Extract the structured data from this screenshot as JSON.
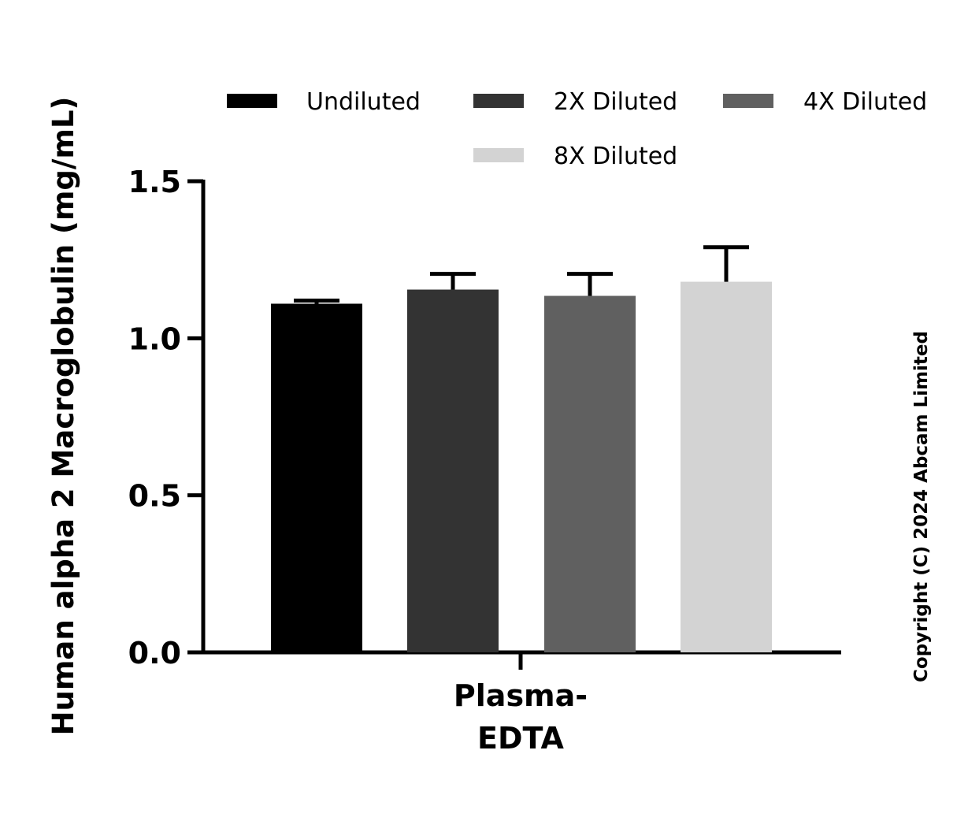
{
  "chart_data": {
    "type": "bar",
    "title": "",
    "ylabel": "Human alpha 2 Macroglobulin (mg/mL)",
    "xlabel": "",
    "categories": [
      "Plasma-\nEDTA"
    ],
    "category_lines": [
      "Plasma-",
      "EDTA"
    ],
    "ylim": [
      0,
      1.5
    ],
    "yticks": [
      "0.0",
      "0.5",
      "1.0",
      "1.5"
    ],
    "ytick_values": [
      0,
      0.5,
      1.0,
      1.5
    ],
    "legend_position": "top",
    "series": [
      {
        "name": "Undiluted",
        "values": [
          1.11
        ],
        "error": [
          0.01
        ],
        "color": "#000000"
      },
      {
        "name": "2X Diluted",
        "values": [
          1.155
        ],
        "error": [
          0.05
        ],
        "color": "#333333"
      },
      {
        "name": "4X Diluted",
        "values": [
          1.135
        ],
        "error": [
          0.07
        ],
        "color": "#606060"
      },
      {
        "name": "8X Diluted",
        "values": [
          1.18
        ],
        "error": [
          0.11
        ],
        "color": "#d3d3d3"
      }
    ]
  },
  "copyright": "Copyright (C) 2024 Abcam Limited"
}
